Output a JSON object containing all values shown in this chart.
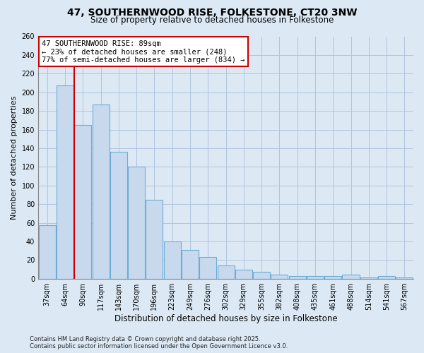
{
  "title1": "47, SOUTHERNWOOD RISE, FOLKESTONE, CT20 3NW",
  "title2": "Size of property relative to detached houses in Folkestone",
  "xlabel": "Distribution of detached houses by size in Folkestone",
  "ylabel": "Number of detached properties",
  "footer1": "Contains HM Land Registry data © Crown copyright and database right 2025.",
  "footer2": "Contains public sector information licensed under the Open Government Licence v3.0.",
  "annotation_title": "47 SOUTHERNWOOD RISE: 89sqm",
  "annotation_line1": "← 23% of detached houses are smaller (248)",
  "annotation_line2": "77% of semi-detached houses are larger (834) →",
  "bar_data": [
    {
      "label": "37sqm",
      "value": 57
    },
    {
      "label": "64sqm",
      "value": 207
    },
    {
      "label": "90sqm",
      "value": 165
    },
    {
      "label": "117sqm",
      "value": 187
    },
    {
      "label": "143sqm",
      "value": 136
    },
    {
      "label": "170sqm",
      "value": 120
    },
    {
      "label": "196sqm",
      "value": 85
    },
    {
      "label": "223sqm",
      "value": 40
    },
    {
      "label": "249sqm",
      "value": 31
    },
    {
      "label": "276sqm",
      "value": 23
    },
    {
      "label": "302sqm",
      "value": 14
    },
    {
      "label": "329sqm",
      "value": 10
    },
    {
      "label": "355sqm",
      "value": 7
    },
    {
      "label": "382sqm",
      "value": 4
    },
    {
      "label": "408sqm",
      "value": 3
    },
    {
      "label": "435sqm",
      "value": 3
    },
    {
      "label": "461sqm",
      "value": 3
    },
    {
      "label": "488sqm",
      "value": 4
    },
    {
      "label": "514sqm",
      "value": 1
    },
    {
      "label": "541sqm",
      "value": 3
    },
    {
      "label": "567sqm",
      "value": 1
    }
  ],
  "bar_color": "#c8d9ee",
  "bar_edge_color": "#6badd6",
  "vline_color": "#cc0000",
  "background_color": "#dce9f5",
  "plot_bg_color": "#dce9f5",
  "grid_color": "#b0c4de",
  "ylim": [
    0,
    260
  ],
  "ytick_step": 20,
  "vline_x": 2,
  "title1_fontsize": 10,
  "title2_fontsize": 8.5,
  "ylabel_fontsize": 8,
  "xlabel_fontsize": 8.5,
  "tick_fontsize": 7,
  "footer_fontsize": 6,
  "ann_fontsize": 7.5
}
